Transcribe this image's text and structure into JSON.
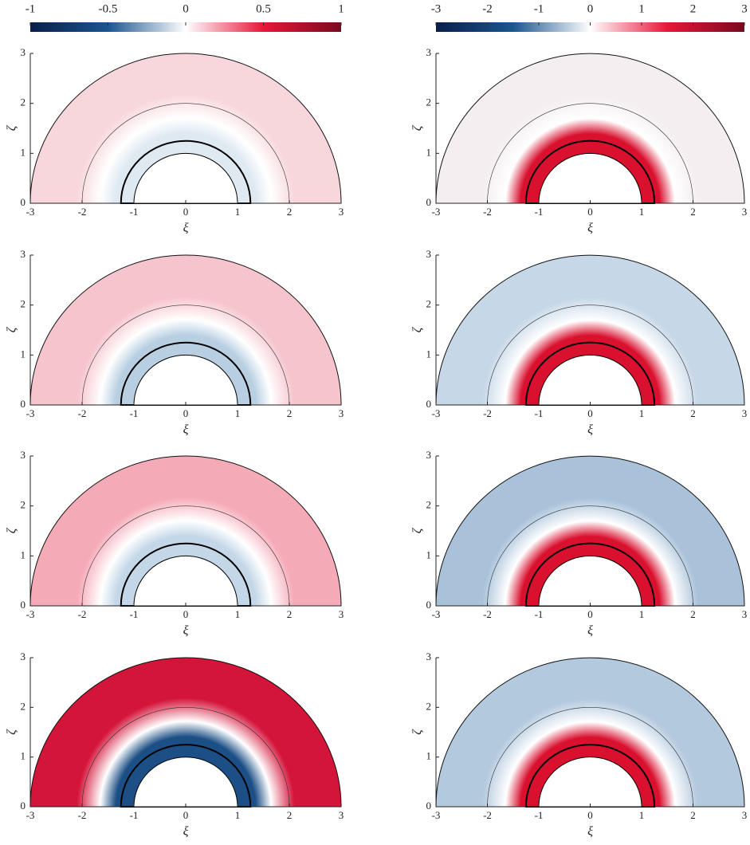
{
  "colorbars": [
    {
      "lim": [
        -1,
        1
      ],
      "ticks": [
        -1,
        -0.5,
        0,
        0.5,
        1
      ],
      "colors": [
        "#0a1f4a",
        "#1a5590",
        "#ffffff",
        "#e8163a",
        "#7a0a1f"
      ]
    },
    {
      "lim": [
        -3,
        3
      ],
      "ticks": [
        -3,
        -2,
        -1,
        0,
        1,
        2,
        3
      ],
      "colors": [
        "#0a1f4a",
        "#1a5590",
        "#ffffff",
        "#e8163a",
        "#7a0a1f"
      ]
    }
  ],
  "chart_data": [
    {
      "type": "contour",
      "xlabel": "ξ",
      "ylabel": "ζ",
      "xlim": [
        -3,
        3
      ],
      "ylim": [
        0,
        3
      ],
      "xticks": [
        -3,
        -2,
        -1,
        0,
        1,
        2,
        3
      ],
      "yticks": [
        0,
        1,
        2,
        3
      ],
      "colors": [
        "#f8d7dc",
        "#dfe9f2"
      ]
    },
    {
      "type": "contour",
      "xlabel": "ξ",
      "ylabel": "ζ",
      "xlim": [
        -3,
        3
      ],
      "ylim": [
        0,
        3
      ],
      "xticks": [
        -3,
        -2,
        -1,
        0,
        1,
        2,
        3
      ],
      "yticks": [
        0,
        1,
        2,
        3
      ],
      "colors": [
        "#f4eef0",
        "#d9102e"
      ]
    },
    {
      "type": "contour",
      "xlabel": "ξ",
      "ylabel": "ζ",
      "xlim": [
        -3,
        3
      ],
      "ylim": [
        0,
        3
      ],
      "xticks": [
        -3,
        -2,
        -1,
        0,
        1,
        2,
        3
      ],
      "yticks": [
        0,
        1,
        2,
        3
      ],
      "colors": [
        "#f6c4cc",
        "#b8cfe2"
      ]
    },
    {
      "type": "contour",
      "xlabel": "ξ",
      "ylabel": "ζ",
      "xlim": [
        -3,
        3
      ],
      "ylim": [
        0,
        3
      ],
      "xticks": [
        -3,
        -2,
        -1,
        0,
        1,
        2,
        3
      ],
      "yticks": [
        0,
        1,
        2,
        3
      ],
      "colors": [
        "#c6d7e7",
        "#d9102e"
      ]
    },
    {
      "type": "contour",
      "xlabel": "ξ",
      "ylabel": "ζ",
      "xlim": [
        -3,
        3
      ],
      "ylim": [
        0,
        3
      ],
      "xticks": [
        -3,
        -2,
        -1,
        0,
        1,
        2,
        3
      ],
      "yticks": [
        0,
        1,
        2,
        3
      ],
      "colors": [
        "#f5aab7",
        "#c4d7e8"
      ]
    },
    {
      "type": "contour",
      "xlabel": "ξ",
      "ylabel": "ζ",
      "xlim": [
        -3,
        3
      ],
      "ylim": [
        0,
        3
      ],
      "xticks": [
        -3,
        -2,
        -1,
        0,
        1,
        2,
        3
      ],
      "yticks": [
        0,
        1,
        2,
        3
      ],
      "colors": [
        "#a9c2da",
        "#d9102e"
      ]
    },
    {
      "type": "contour",
      "xlabel": "ξ",
      "ylabel": "ζ",
      "xlim": [
        -3,
        3
      ],
      "ylim": [
        0,
        3
      ],
      "xticks": [
        -3,
        -2,
        -1,
        0,
        1,
        2,
        3
      ],
      "yticks": [
        0,
        1,
        2,
        3
      ],
      "colors": [
        "#d4153a",
        "#1c4f85"
      ]
    },
    {
      "type": "contour",
      "xlabel": "ξ",
      "ylabel": "ζ",
      "xlim": [
        -3,
        3
      ],
      "ylim": [
        0,
        3
      ],
      "xticks": [
        -3,
        -2,
        -1,
        0,
        1,
        2,
        3
      ],
      "yticks": [
        0,
        1,
        2,
        3
      ],
      "colors": [
        "#b3c9de",
        "#d9102e"
      ]
    }
  ]
}
